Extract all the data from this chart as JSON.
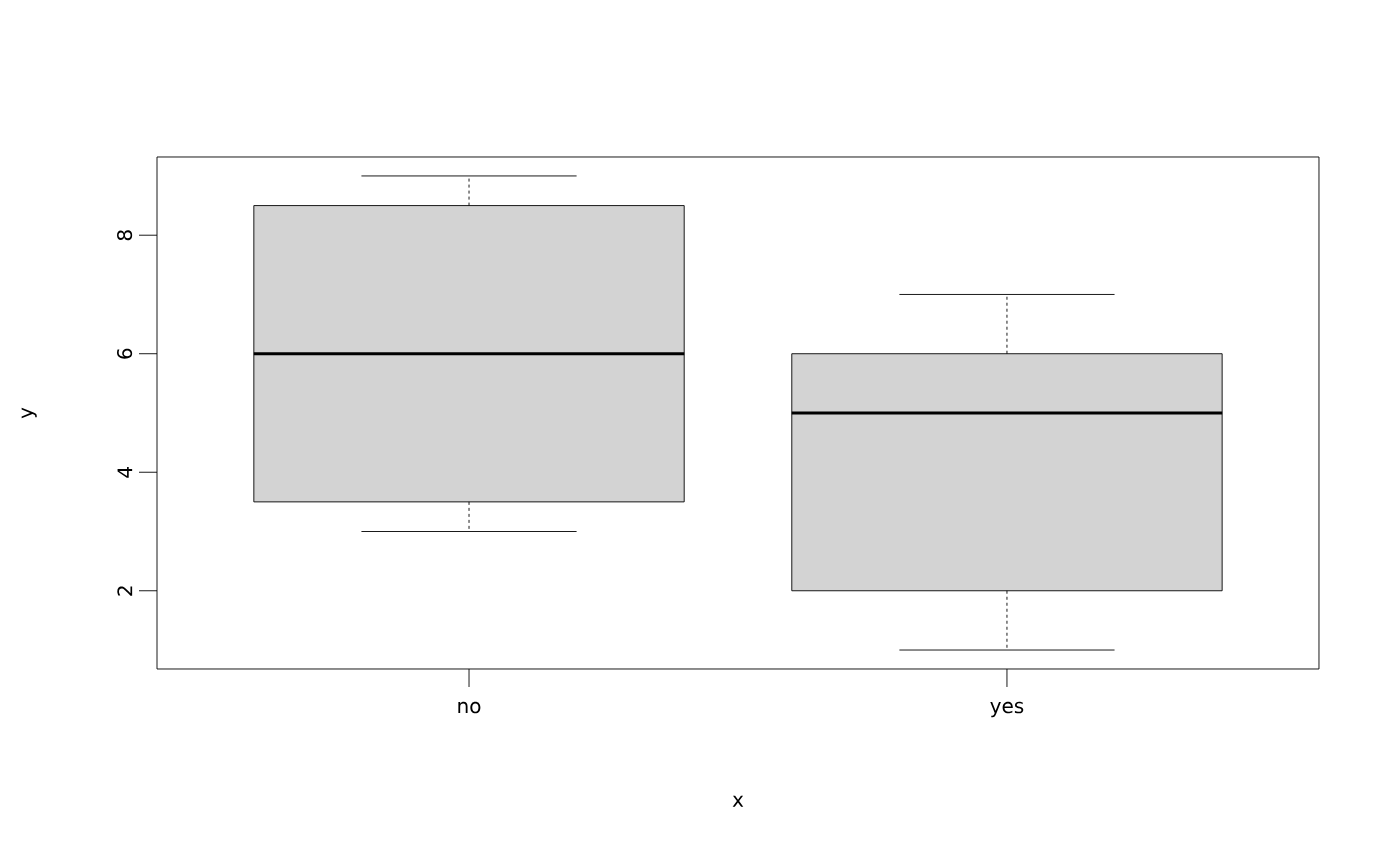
{
  "chart_data": {
    "type": "box",
    "xlabel": "x",
    "ylabel": "y",
    "categories": [
      "no",
      "yes"
    ],
    "color": "#d3d3d3",
    "ylim": [
      0.68,
      9.32
    ],
    "yticks": [
      2,
      4,
      6,
      8
    ],
    "boxes": [
      {
        "low": 3,
        "q1": 3.5,
        "median": 6,
        "q3": 8.5,
        "high": 9
      },
      {
        "low": 1,
        "q1": 2,
        "median": 5,
        "q3": 6,
        "high": 7
      }
    ]
  }
}
